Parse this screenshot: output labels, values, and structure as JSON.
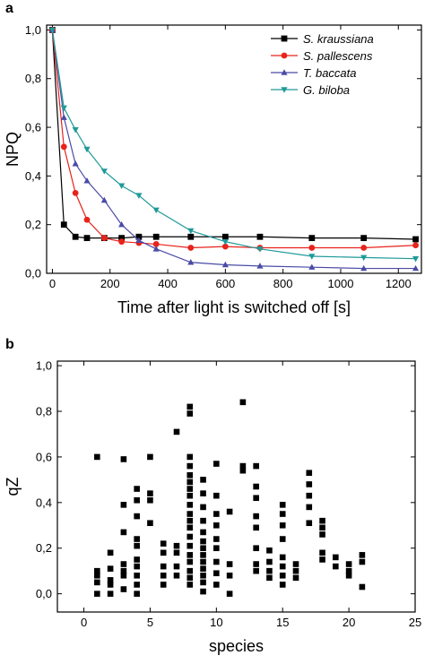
{
  "chart_data": [
    {
      "panel": "a",
      "type": "line",
      "xlabel": "Time after light is switched off [s]",
      "ylabel": "NPQ",
      "xlim": [
        -20,
        1280
      ],
      "ylim": [
        0,
        1.02
      ],
      "xticks": [
        0,
        200,
        400,
        600,
        800,
        1000,
        1200
      ],
      "xtick_labels": [
        "0",
        "200",
        "400",
        "600",
        "800",
        "1000",
        "1200"
      ],
      "yticks": [
        0,
        0.2,
        0.4,
        0.6,
        0.8,
        1.0
      ],
      "ytick_labels": [
        "0,0",
        "0,2",
        "0,4",
        "0,6",
        "0,8",
        "1,0"
      ],
      "legend_position": "top-right",
      "series": [
        {
          "name": "S. kraussiana",
          "color": "#000000",
          "marker": "square",
          "x": [
            0,
            40,
            80,
            120,
            180,
            240,
            300,
            360,
            480,
            600,
            720,
            900,
            1080,
            1260
          ],
          "y": [
            1.0,
            0.2,
            0.15,
            0.145,
            0.145,
            0.145,
            0.15,
            0.15,
            0.15,
            0.15,
            0.15,
            0.145,
            0.145,
            0.14
          ]
        },
        {
          "name": "S. pallescens",
          "color": "#e8231b",
          "marker": "circle",
          "x": [
            0,
            40,
            80,
            120,
            180,
            240,
            300,
            360,
            480,
            600,
            720,
            900,
            1080,
            1260
          ],
          "y": [
            1.0,
            0.52,
            0.33,
            0.22,
            0.145,
            0.13,
            0.125,
            0.12,
            0.105,
            0.11,
            0.105,
            0.105,
            0.105,
            0.115
          ]
        },
        {
          "name": "T. baccata",
          "color": "#4a4ba6",
          "marker": "triangle-up",
          "x": [
            0,
            40,
            80,
            120,
            180,
            240,
            300,
            360,
            480,
            600,
            720,
            900,
            1080,
            1260
          ],
          "y": [
            1.0,
            0.64,
            0.45,
            0.38,
            0.3,
            0.2,
            0.135,
            0.1,
            0.045,
            0.035,
            0.03,
            0.025,
            0.02,
            0.02
          ]
        },
        {
          "name": "G. biloba",
          "color": "#1f9a98",
          "marker": "triangle-down",
          "x": [
            0,
            40,
            80,
            120,
            180,
            240,
            300,
            360,
            480,
            600,
            720,
            900,
            1080,
            1260
          ],
          "y": [
            1.0,
            0.68,
            0.59,
            0.51,
            0.42,
            0.36,
            0.32,
            0.26,
            0.175,
            0.13,
            0.1,
            0.07,
            0.065,
            0.06
          ]
        }
      ]
    },
    {
      "panel": "b",
      "type": "scatter",
      "xlabel": "species",
      "ylabel": "qZ",
      "xlim": [
        -2,
        25
      ],
      "ylim": [
        -0.08,
        1.02
      ],
      "xticks": [
        0,
        5,
        10,
        15,
        20,
        25
      ],
      "xtick_labels": [
        "0",
        "5",
        "10",
        "15",
        "20",
        "25"
      ],
      "yticks": [
        0,
        0.2,
        0.4,
        0.6,
        0.8,
        1.0
      ],
      "ytick_labels": [
        "0,0",
        "0,2",
        "0,4",
        "0,6",
        "0,8",
        "1,0"
      ],
      "color": "#000000",
      "marker": "square",
      "points": [
        [
          1,
          0.6
        ],
        [
          1,
          0.1
        ],
        [
          1,
          0.08
        ],
        [
          1,
          0.05
        ],
        [
          1,
          0.0
        ],
        [
          2,
          0.18
        ],
        [
          2,
          0.11
        ],
        [
          2,
          0.06
        ],
        [
          2,
          0.04
        ],
        [
          2,
          0.0
        ],
        [
          3,
          0.59
        ],
        [
          3,
          0.39
        ],
        [
          3,
          0.27
        ],
        [
          3,
          0.13
        ],
        [
          3,
          0.1
        ],
        [
          3,
          0.08
        ],
        [
          3,
          0.02
        ],
        [
          4,
          0.46
        ],
        [
          4,
          0.41
        ],
        [
          4,
          0.34
        ],
        [
          4,
          0.24
        ],
        [
          4,
          0.21
        ],
        [
          4,
          0.15
        ],
        [
          4,
          0.12
        ],
        [
          4,
          0.08
        ],
        [
          4,
          0.04
        ],
        [
          4,
          0.0
        ],
        [
          5,
          0.6
        ],
        [
          5,
          0.44
        ],
        [
          5,
          0.41
        ],
        [
          5,
          0.31
        ],
        [
          6,
          0.22
        ],
        [
          6,
          0.18
        ],
        [
          6,
          0.12
        ],
        [
          6,
          0.08
        ],
        [
          6,
          0.04
        ],
        [
          7,
          0.71
        ],
        [
          7,
          0.21
        ],
        [
          7,
          0.18
        ],
        [
          7,
          0.12
        ],
        [
          7,
          0.08
        ],
        [
          8,
          0.82
        ],
        [
          8,
          0.79
        ],
        [
          8,
          0.6
        ],
        [
          8,
          0.56
        ],
        [
          8,
          0.52
        ],
        [
          8,
          0.49
        ],
        [
          8,
          0.46
        ],
        [
          8,
          0.43
        ],
        [
          8,
          0.39
        ],
        [
          8,
          0.35
        ],
        [
          8,
          0.32
        ],
        [
          8,
          0.29
        ],
        [
          8,
          0.25
        ],
        [
          8,
          0.21
        ],
        [
          8,
          0.17
        ],
        [
          8,
          0.14
        ],
        [
          8,
          0.1
        ],
        [
          8,
          0.07
        ],
        [
          8,
          0.04
        ],
        [
          9,
          0.5
        ],
        [
          9,
          0.44
        ],
        [
          9,
          0.38
        ],
        [
          9,
          0.32
        ],
        [
          9,
          0.27
        ],
        [
          9,
          0.23
        ],
        [
          9,
          0.2
        ],
        [
          9,
          0.17
        ],
        [
          9,
          0.14
        ],
        [
          9,
          0.11
        ],
        [
          9,
          0.08
        ],
        [
          9,
          0.05
        ],
        [
          9,
          0.01
        ],
        [
          10,
          0.57
        ],
        [
          10,
          0.43
        ],
        [
          10,
          0.35
        ],
        [
          10,
          0.3
        ],
        [
          10,
          0.24
        ],
        [
          10,
          0.2
        ],
        [
          10,
          0.14
        ],
        [
          10,
          0.09
        ],
        [
          10,
          0.04
        ],
        [
          11,
          0.36
        ],
        [
          11,
          0.13
        ],
        [
          11,
          0.08
        ],
        [
          11,
          0.0
        ],
        [
          12,
          0.84
        ],
        [
          12,
          0.56
        ],
        [
          12,
          0.54
        ],
        [
          13,
          0.56
        ],
        [
          13,
          0.47
        ],
        [
          13,
          0.42
        ],
        [
          13,
          0.34
        ],
        [
          13,
          0.29
        ],
        [
          13,
          0.2
        ],
        [
          13,
          0.13
        ],
        [
          13,
          0.1
        ],
        [
          14,
          0.19
        ],
        [
          14,
          0.14
        ],
        [
          14,
          0.1
        ],
        [
          14,
          0.07
        ],
        [
          15,
          0.39
        ],
        [
          15,
          0.35
        ],
        [
          15,
          0.3
        ],
        [
          15,
          0.24
        ],
        [
          15,
          0.16
        ],
        [
          15,
          0.12
        ],
        [
          15,
          0.08
        ],
        [
          15,
          0.04
        ],
        [
          16,
          0.13
        ],
        [
          16,
          0.1
        ],
        [
          16,
          0.07
        ],
        [
          17,
          0.53
        ],
        [
          17,
          0.48
        ],
        [
          17,
          0.43
        ],
        [
          17,
          0.38
        ],
        [
          17,
          0.31
        ],
        [
          18,
          0.32
        ],
        [
          18,
          0.29
        ],
        [
          18,
          0.26
        ],
        [
          18,
          0.18
        ],
        [
          18,
          0.15
        ],
        [
          19,
          0.16
        ],
        [
          19,
          0.12
        ],
        [
          20,
          0.13
        ],
        [
          20,
          0.1
        ],
        [
          20,
          0.08
        ],
        [
          21,
          0.17
        ],
        [
          21,
          0.14
        ],
        [
          21,
          0.03
        ]
      ]
    }
  ]
}
